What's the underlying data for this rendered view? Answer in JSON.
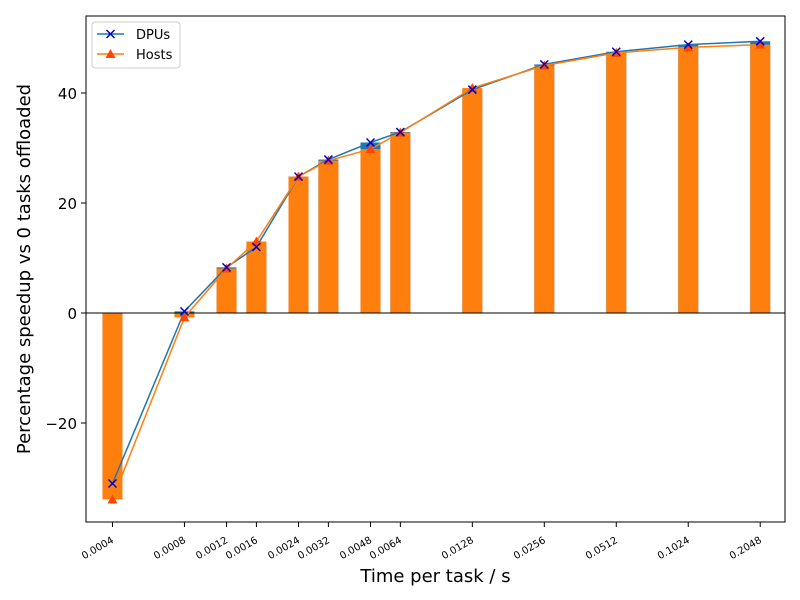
{
  "chart_data": {
    "type": "bar",
    "xscale": "log",
    "xlabel": "Time per task / s",
    "ylabel": "Percentage speedup vs 0 tasks offloaded",
    "xlim": [
      0.00031,
      0.26
    ],
    "ylim": [
      -38,
      54
    ],
    "yticks": [
      -20,
      0,
      20,
      40
    ],
    "categories": [
      "0.0004",
      "0.0008",
      "0.0012",
      "0.0016",
      "0.0024",
      "0.0032",
      "0.0048",
      "0.0064",
      "0.0128",
      "0.0256",
      "0.0512",
      "0.1024",
      "0.2048"
    ],
    "x": [
      0.0004,
      0.0008,
      0.0012,
      0.0016,
      0.0024,
      0.0032,
      0.0048,
      0.0064,
      0.0128,
      0.0256,
      0.0512,
      0.1024,
      0.2048
    ],
    "legend_position": "top-left",
    "grid": false,
    "series": [
      {
        "name": "DPUs",
        "color": "#1f77b4",
        "bar_color": "#1f77b4",
        "marker": "x",
        "values": [
          -31.0,
          0.3,
          8.3,
          12.0,
          24.8,
          27.9,
          31.0,
          32.9,
          40.6,
          45.2,
          47.5,
          48.8,
          49.4
        ]
      },
      {
        "name": "Hosts",
        "color": "#ff7f0e",
        "bar_color": "#ff7f0e",
        "marker": "triangle",
        "values": [
          -33.9,
          -0.8,
          8.1,
          13.0,
          24.8,
          27.7,
          29.8,
          32.8,
          40.9,
          45.0,
          47.3,
          48.3,
          48.8
        ]
      }
    ]
  }
}
